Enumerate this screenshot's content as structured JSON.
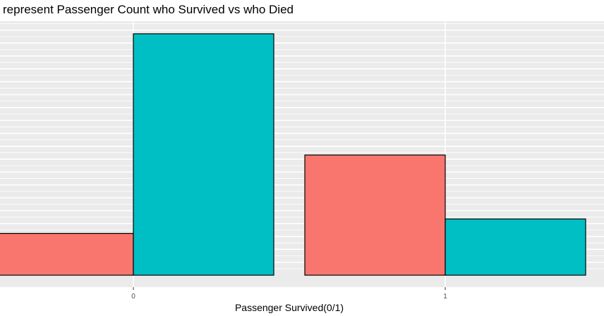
{
  "chart_data": {
    "type": "bar",
    "title": "represent Passenger Count who Survived vs who Died",
    "xlabel": "Passenger Survived(0/1)",
    "ylabel": "",
    "categories": [
      "0",
      "1"
    ],
    "series": [
      {
        "values": [
          81,
          233
        ],
        "fill": "#F8766D"
      },
      {
        "values": [
          468,
          109
        ],
        "fill": "#00BFC4"
      }
    ],
    "ylim": [
      0,
      468
    ],
    "grid": true,
    "panel_background": "#EBEBEB",
    "gridline_color": "#ffffff",
    "bar_outline_color": "#000000"
  }
}
